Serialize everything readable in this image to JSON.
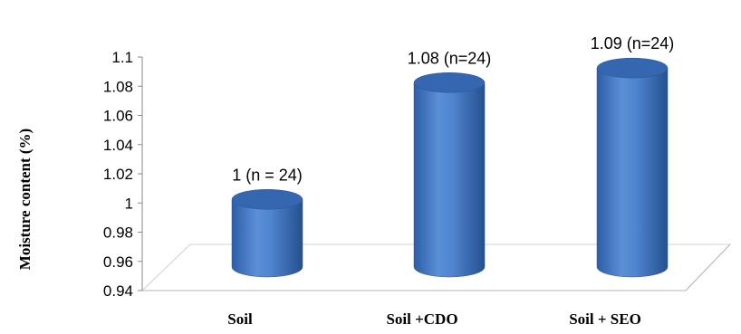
{
  "chart_data": {
    "type": "bar",
    "title": "",
    "xlabel": "",
    "ylabel": "Moisture content (%)",
    "categories": [
      "Soil",
      "Soil +CDO",
      "Soil + SEO"
    ],
    "values": [
      1.0,
      1.08,
      1.09
    ],
    "data_labels": [
      "1 (n = 24)",
      "1.08 (n=24)",
      "1.09  (n=24)"
    ],
    "ylim": [
      0.94,
      1.1
    ],
    "yticks": [
      "0.94",
      "0.96",
      "0.98",
      "1",
      "1.02",
      "1.04",
      "1.06",
      "1.08",
      "1.1"
    ],
    "bar_style": "3d-cylinder",
    "bar_color": "#4a7ac2",
    "grid": false,
    "legend": "none"
  }
}
